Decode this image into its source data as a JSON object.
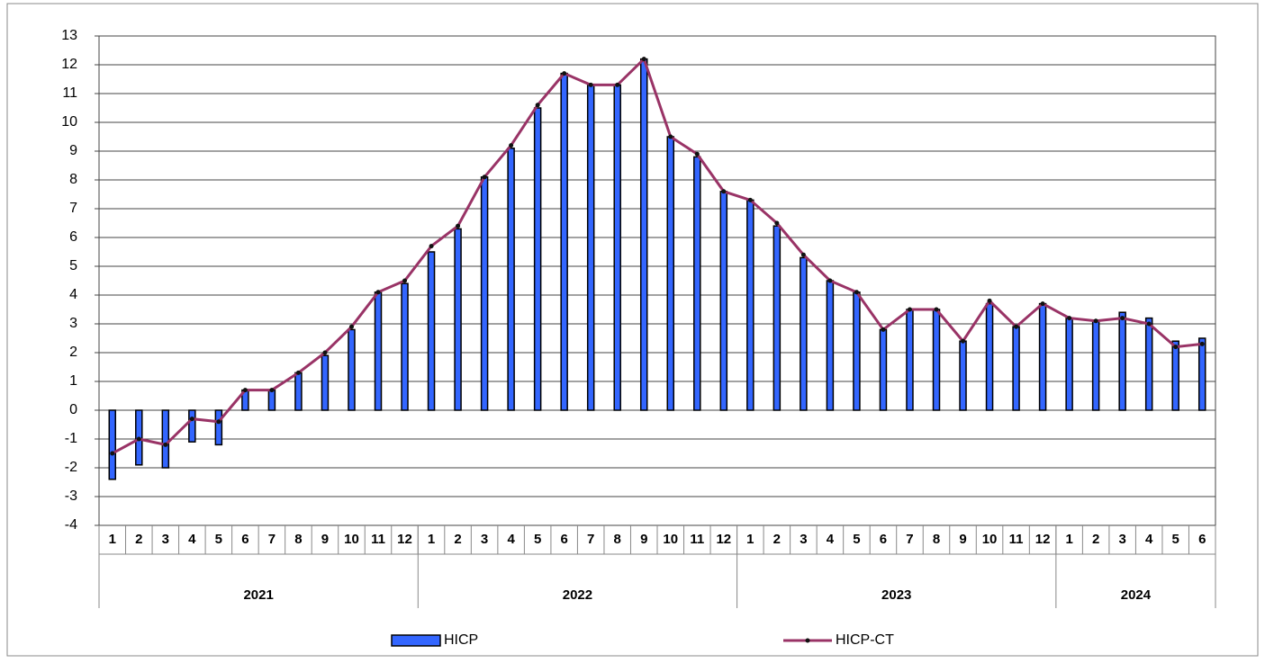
{
  "chart_data": {
    "type": "bar-line",
    "groups": [
      {
        "name": "2021",
        "categories": [
          "1",
          "2",
          "3",
          "4",
          "5",
          "6",
          "7",
          "8",
          "9",
          "10",
          "11",
          "12"
        ]
      },
      {
        "name": "2022",
        "categories": [
          "1",
          "2",
          "3",
          "4",
          "5",
          "6",
          "7",
          "8",
          "9",
          "10",
          "11",
          "12"
        ]
      },
      {
        "name": "2023",
        "categories": [
          "1",
          "2",
          "3",
          "4",
          "5",
          "6",
          "7",
          "8",
          "9",
          "10",
          "11",
          "12"
        ]
      },
      {
        "name": "2024",
        "categories": [
          "1",
          "2",
          "3",
          "4",
          "5",
          "6"
        ]
      }
    ],
    "series": [
      {
        "name": "HICP",
        "type": "bar",
        "color": "#3366ff",
        "values": [
          -2.4,
          -1.9,
          -2.0,
          -1.1,
          -1.2,
          0.7,
          0.7,
          1.3,
          1.9,
          2.8,
          4.1,
          4.4,
          5.5,
          6.3,
          8.1,
          9.1,
          10.5,
          11.7,
          11.3,
          11.3,
          12.2,
          9.5,
          8.8,
          7.6,
          7.3,
          6.4,
          5.3,
          4.5,
          4.1,
          2.8,
          3.5,
          3.5,
          2.4,
          3.7,
          2.9,
          3.7,
          3.2,
          3.1,
          3.4,
          3.2,
          2.4,
          2.5
        ]
      },
      {
        "name": "HICP-CT",
        "type": "line",
        "color": "#993366",
        "values": [
          -1.5,
          -1.0,
          -1.2,
          -0.3,
          -0.4,
          0.7,
          0.7,
          1.3,
          2.0,
          2.9,
          4.1,
          4.5,
          5.7,
          6.4,
          8.1,
          9.2,
          10.6,
          11.7,
          11.3,
          11.3,
          12.2,
          9.5,
          8.9,
          7.6,
          7.3,
          6.5,
          5.4,
          4.5,
          4.1,
          2.8,
          3.5,
          3.5,
          2.4,
          3.8,
          2.9,
          3.7,
          3.2,
          3.1,
          3.2,
          3.0,
          2.2,
          2.3
        ]
      }
    ],
    "ylim": [
      -4,
      13
    ],
    "yticks": [
      -4,
      -3,
      -2,
      -1,
      0,
      1,
      2,
      3,
      4,
      5,
      6,
      7,
      8,
      9,
      10,
      11,
      12,
      13
    ],
    "grid": true,
    "legend": "bottom"
  }
}
